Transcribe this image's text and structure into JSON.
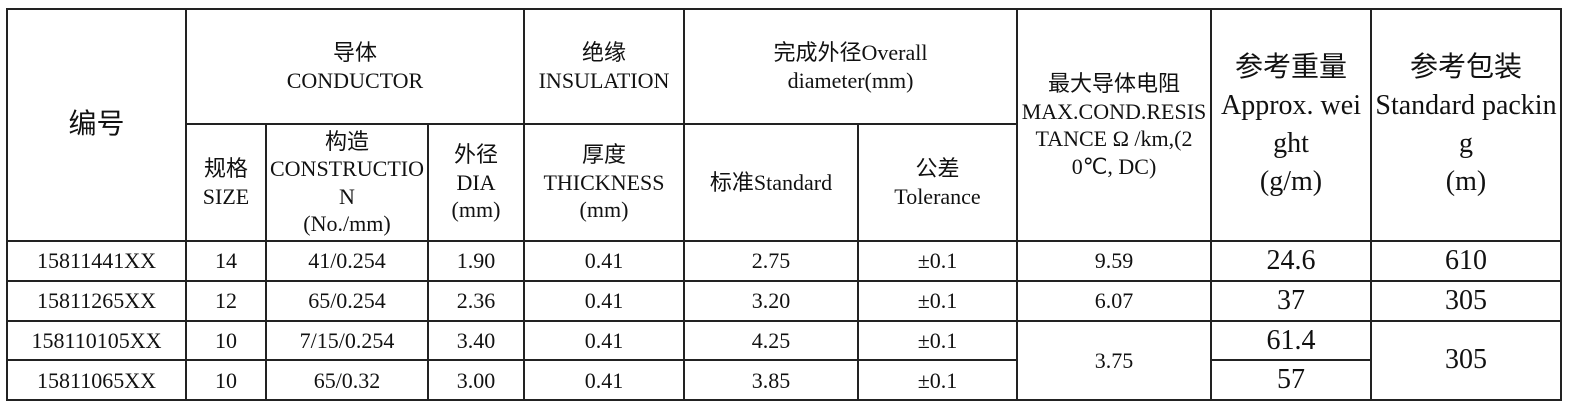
{
  "table": {
    "header": {
      "id": "编号",
      "conductor": {
        "zh": "导体",
        "en": "CONDUCTOR"
      },
      "insulation": {
        "zh": "绝缘",
        "en": "INSULATION"
      },
      "overall": {
        "zh": "完成外径Overall",
        "en": "diameter(mm)"
      },
      "resistance": {
        "zh": "最大导体电阻",
        "en": "MAX.COND.RESISTANCE Ω /km,(20℃, DC)"
      },
      "weight": {
        "zh": "参考重量",
        "en": "Approx. weight",
        "unit": "(g/m)"
      },
      "packing": {
        "zh": "参考包装",
        "en": "Standard packing",
        "unit": "(m)"
      },
      "size": {
        "zh": "规格",
        "en": "SIZE"
      },
      "construction": {
        "zh": "构造",
        "en": "CONSTRUCTION",
        "unit": "(No./mm)"
      },
      "dia": {
        "zh": "外径",
        "en": "DIA",
        "unit": "(mm)"
      },
      "thickness": {
        "zh": "厚度",
        "en": "THICKNESS",
        "unit": "(mm)"
      },
      "standard": "标准Standard",
      "tolerance": {
        "zh": "公差",
        "en": "Tolerance"
      }
    },
    "rows": [
      [
        "15811441XX",
        "14",
        "41/0.254",
        "1.90",
        "0.41",
        "2.75",
        "±0.1",
        "9.59",
        "24.6",
        "610"
      ],
      [
        "15811265XX",
        "12",
        "65/0.254",
        "2.36",
        "0.41",
        "3.20",
        "±0.1",
        "6.07",
        "37",
        "305"
      ],
      [
        "158110105XX",
        "10",
        "7/15/0.254",
        "3.40",
        "0.41",
        "4.25",
        "±0.1",
        "3.75",
        "61.4",
        "305"
      ],
      [
        "15811065XX",
        "10",
        "65/0.32",
        "3.00",
        "0.41",
        "3.85",
        "±0.1",
        "57"
      ]
    ]
  }
}
